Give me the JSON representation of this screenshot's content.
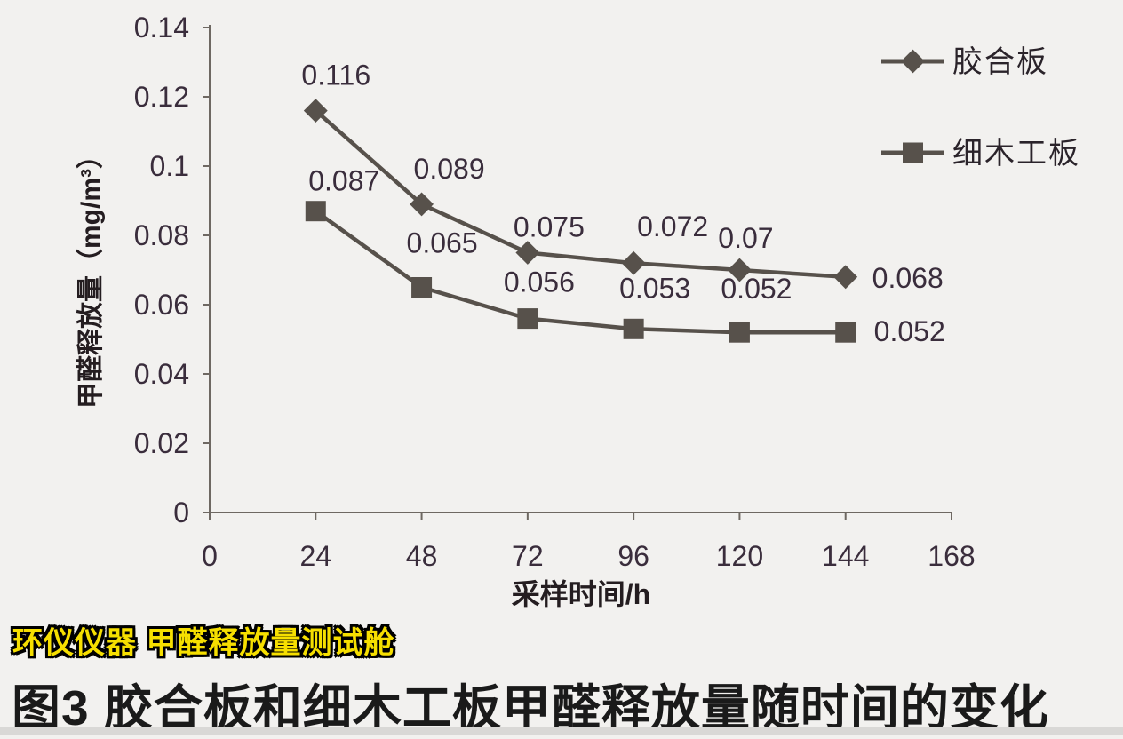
{
  "figure": {
    "watermark": "环仪仪器 甲醛释放量测试舱",
    "caption": "图3 胶合板和细木工板甲醛释放量随时间的变化"
  },
  "chart_data": {
    "type": "line",
    "title": "",
    "xlabel": "采样时间/h",
    "ylabel": "甲醛释放量（mg/m³）",
    "x": [
      24,
      48,
      72,
      96,
      120,
      144
    ],
    "series": [
      {
        "name": "胶合板",
        "marker": "diamond",
        "values": [
          0.116,
          0.089,
          0.075,
          0.072,
          0.07,
          0.068
        ],
        "point_labels": [
          "0.116",
          "0.089",
          "0.075",
          "0.072",
          "0.07",
          "0.068"
        ]
      },
      {
        "name": "细木工板",
        "marker": "square",
        "values": [
          0.087,
          0.065,
          0.056,
          0.053,
          0.052,
          0.052
        ],
        "point_labels": [
          "0.087",
          "0.065",
          "0.056",
          "0.053",
          "0.052",
          "0.052"
        ]
      }
    ],
    "xlim": [
      0,
      168
    ],
    "ylim": [
      0,
      0.14
    ],
    "x_tick_labels": [
      "0",
      "24",
      "48",
      "72",
      "96",
      "120",
      "144",
      "168"
    ],
    "y_tick_labels": [
      "0",
      "0.02",
      "0.04",
      "0.06",
      "0.08",
      "0.1",
      "0.12",
      "0.14"
    ],
    "grid": false,
    "legend_position": "top-right",
    "colors": {
      "series": "#57514b",
      "axis": "#6e6862",
      "tick_text": "#3a2d3c",
      "data_label_text": "#3a2d3c",
      "axis_title_text": "#241d20",
      "legend_text": "#2a232a",
      "background": "#f2f1ef"
    }
  }
}
